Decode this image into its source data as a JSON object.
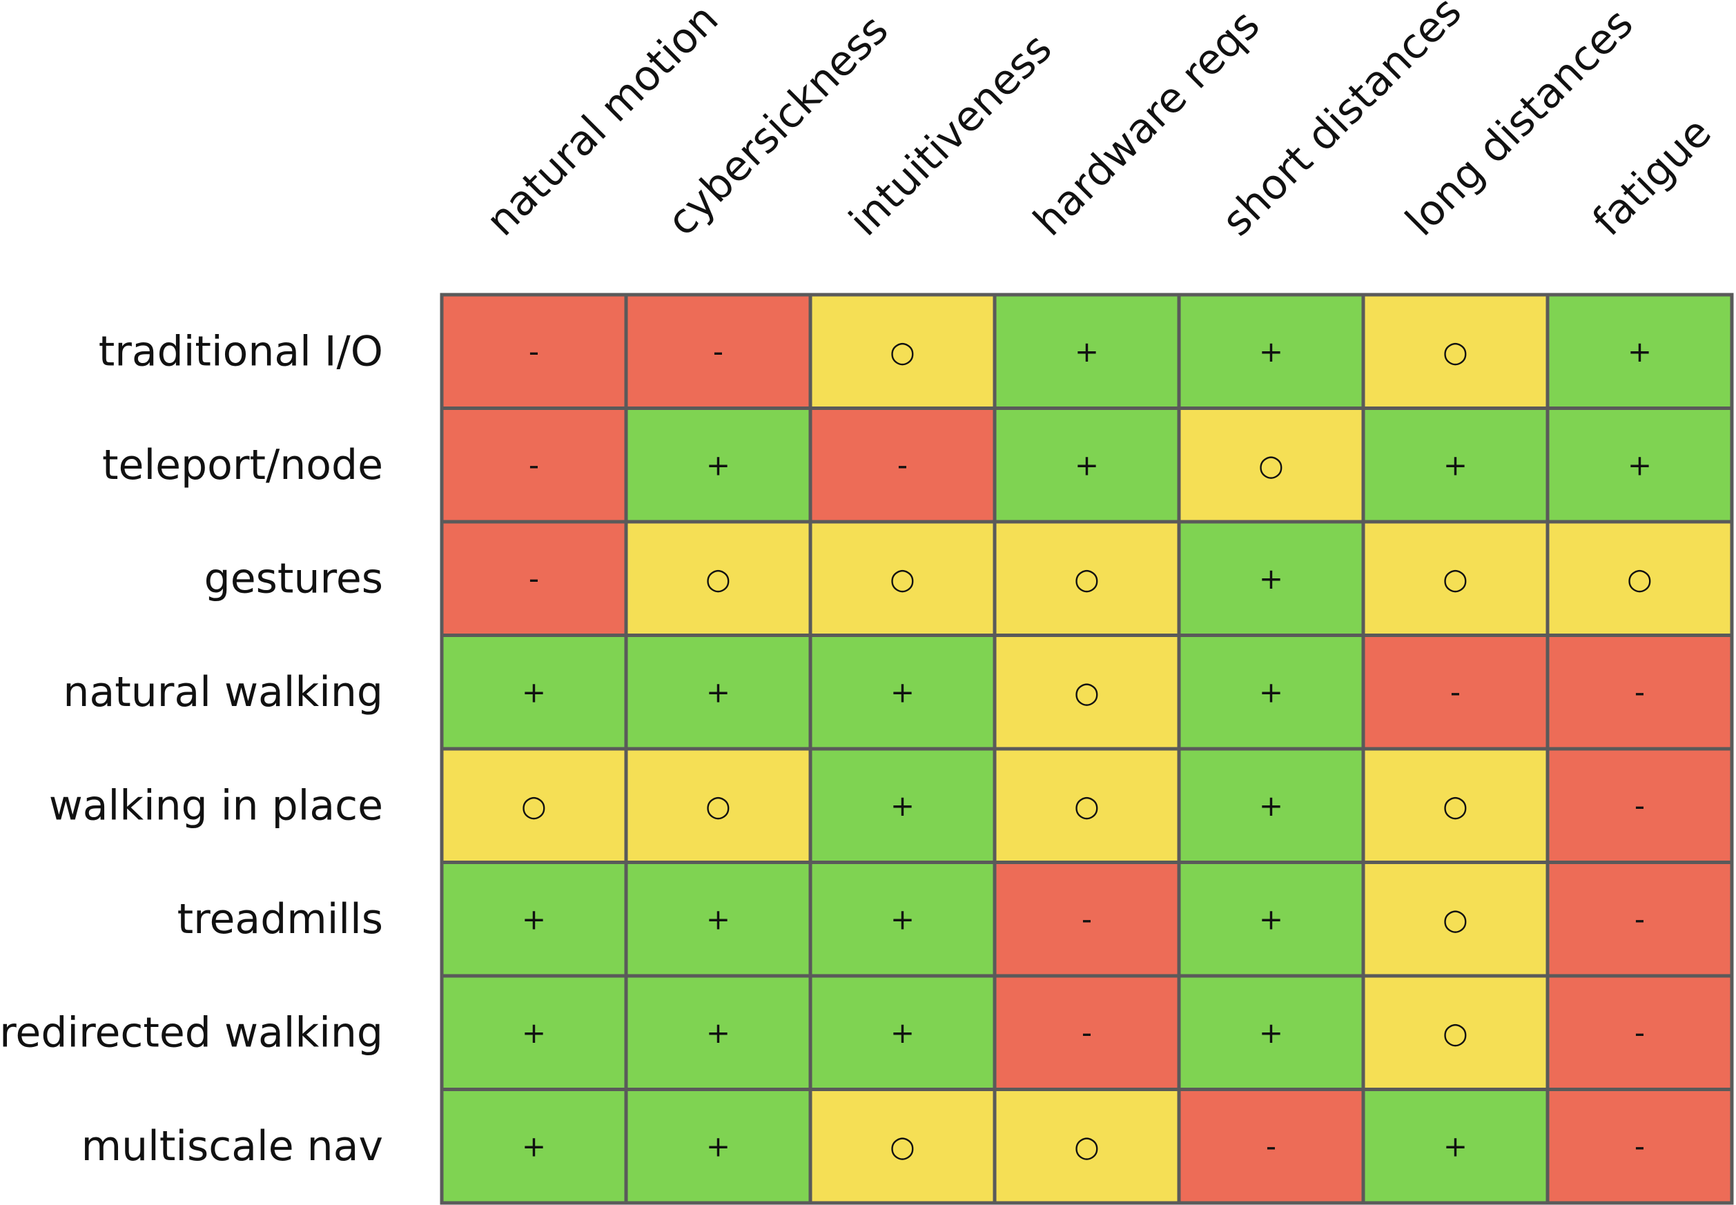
{
  "chart_data": {
    "type": "table",
    "columns": [
      "natural motion",
      "cybersickness",
      "intuitiveness",
      "hardware reqs",
      "short distances",
      "long distances",
      "fatigue"
    ],
    "rows": [
      "traditional I/O",
      "teleport/node",
      "gestures",
      "natural walking",
      "walking in place",
      "treadmills",
      "redirected walking",
      "multiscale nav"
    ],
    "values": [
      [
        "-",
        "-",
        "○",
        "+",
        "+",
        "○",
        "+"
      ],
      [
        "-",
        "+",
        "-",
        "+",
        "○",
        "+",
        "+"
      ],
      [
        "-",
        "○",
        "○",
        "○",
        "+",
        "○",
        "○"
      ],
      [
        "+",
        "+",
        "+",
        "○",
        "+",
        "-",
        "-"
      ],
      [
        "○",
        "○",
        "+",
        "○",
        "+",
        "○",
        "-"
      ],
      [
        "+",
        "+",
        "+",
        "-",
        "+",
        "○",
        "-"
      ],
      [
        "+",
        "+",
        "+",
        "-",
        "+",
        "○",
        "-"
      ],
      [
        "+",
        "+",
        "○",
        "○",
        "-",
        "+",
        "-"
      ]
    ],
    "colors": {
      "+": "#7fd352",
      "○": "#f5df55",
      "-": "#ed6c57",
      "grid": "#5a5a5a"
    }
  }
}
